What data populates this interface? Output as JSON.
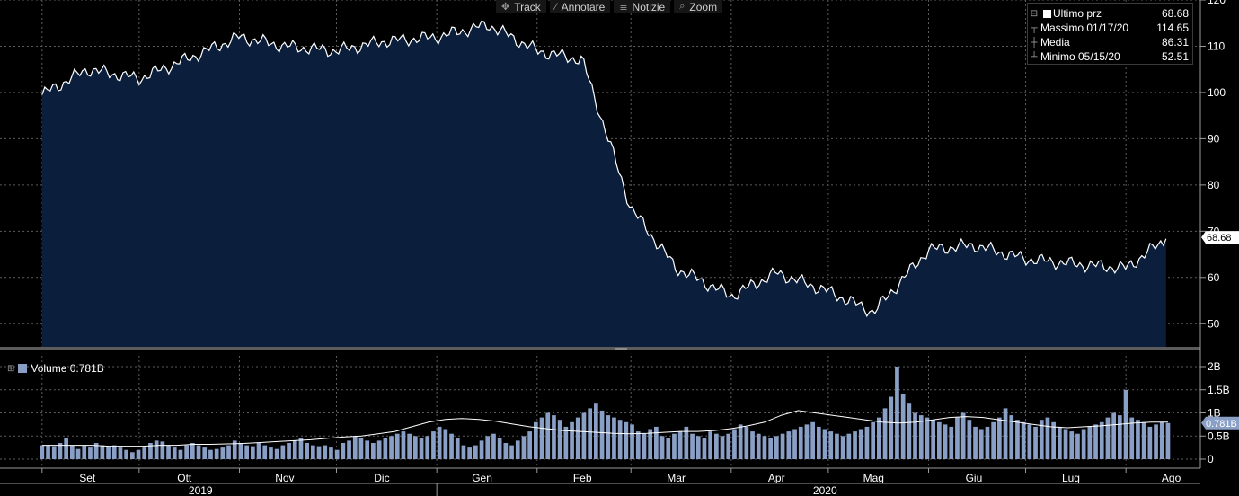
{
  "toolbar": {
    "track": "Track",
    "annotate": "Annotare",
    "news": "Notizie",
    "zoom": "Zoom"
  },
  "legend": {
    "last_label": "Ultimo prz",
    "last_value": "68.68",
    "high_label": "Massimo 01/17/20",
    "high_value": "114.65",
    "avg_label": "Media",
    "avg_value": "86.31",
    "low_label": "Minimo 05/15/20",
    "low_value": "52.51"
  },
  "volume_legend": {
    "label": "Volume 0.781B"
  },
  "colors": {
    "price_fill": "#0b1f3d",
    "price_line": "#ffffff",
    "volume_bar": "#8a9fc6",
    "grid": "#5a5a5a"
  },
  "chart_data": [
    {
      "type": "area",
      "series": [
        {
          "name": "Ultimo prz"
        }
      ],
      "x": [
        "2019-09-01",
        "2019-09-15",
        "2019-10-01",
        "2019-10-15",
        "2019-11-01",
        "2019-11-15",
        "2019-12-01",
        "2019-12-15",
        "2020-01-01",
        "2020-01-17",
        "2020-02-01",
        "2020-02-15",
        "2020-03-01",
        "2020-03-15",
        "2020-04-01",
        "2020-04-15",
        "2020-05-01",
        "2020-05-15",
        "2020-06-01",
        "2020-06-15",
        "2020-07-01",
        "2020-07-15",
        "2020-08-01",
        "2020-08-14"
      ],
      "values": [
        99.5,
        105,
        103,
        107,
        112,
        110,
        109,
        111,
        112,
        114.65,
        109,
        107,
        75,
        62,
        56,
        61,
        57,
        52.51,
        66,
        67,
        64,
        63,
        62,
        68.68
      ],
      "ylim": [
        45,
        120
      ],
      "y_ticks": [
        "120",
        "110",
        "100",
        "90",
        "80",
        "70",
        "60",
        "50"
      ],
      "last_value_label": "68.68",
      "x_ticks": [
        "Set",
        "Ott",
        "Nov",
        "Dic",
        "Gen",
        "Feb",
        "Mar",
        "Apr",
        "Mag",
        "Giu",
        "Lug",
        "Ago"
      ],
      "years": [
        "2019",
        "2020"
      ],
      "grid": true
    },
    {
      "type": "bar",
      "series": [
        {
          "name": "Volume"
        }
      ],
      "units": "billions",
      "x_range": [
        "2019-09-01",
        "2020-08-14"
      ],
      "values": [
        0.3,
        0.3,
        0.28,
        0.35,
        0.45,
        0.3,
        0.22,
        0.3,
        0.25,
        0.35,
        0.3,
        0.28,
        0.3,
        0.25,
        0.2,
        0.15,
        0.2,
        0.25,
        0.35,
        0.4,
        0.38,
        0.3,
        0.25,
        0.2,
        0.3,
        0.35,
        0.3,
        0.25,
        0.2,
        0.22,
        0.25,
        0.3,
        0.4,
        0.35,
        0.3,
        0.28,
        0.35,
        0.3,
        0.25,
        0.22,
        0.3,
        0.35,
        0.4,
        0.45,
        0.35,
        0.3,
        0.28,
        0.3,
        0.25,
        0.2,
        0.35,
        0.4,
        0.5,
        0.45,
        0.4,
        0.35,
        0.4,
        0.45,
        0.5,
        0.55,
        0.6,
        0.55,
        0.5,
        0.45,
        0.5,
        0.6,
        0.7,
        0.65,
        0.55,
        0.45,
        0.3,
        0.25,
        0.3,
        0.4,
        0.5,
        0.55,
        0.45,
        0.35,
        0.3,
        0.4,
        0.5,
        0.6,
        0.8,
        0.9,
        1.0,
        0.95,
        0.85,
        0.7,
        0.8,
        0.9,
        1.0,
        1.1,
        1.2,
        1.05,
        0.95,
        0.9,
        0.85,
        0.8,
        0.75,
        0.6,
        0.55,
        0.65,
        0.7,
        0.5,
        0.45,
        0.55,
        0.6,
        0.7,
        0.55,
        0.5,
        0.45,
        0.6,
        0.55,
        0.5,
        0.55,
        0.65,
        0.75,
        0.7,
        0.6,
        0.55,
        0.5,
        0.45,
        0.5,
        0.55,
        0.6,
        0.65,
        0.7,
        0.75,
        0.8,
        0.7,
        0.65,
        0.6,
        0.55,
        0.5,
        0.55,
        0.6,
        0.65,
        0.7,
        0.8,
        0.9,
        1.1,
        1.35,
        2.0,
        1.4,
        1.2,
        1.0,
        0.95,
        0.9,
        0.85,
        0.8,
        0.75,
        0.7,
        0.9,
        1.0,
        0.85,
        0.7,
        0.65,
        0.7,
        0.8,
        0.9,
        1.1,
        0.95,
        0.85,
        0.8,
        0.75,
        0.7,
        0.85,
        0.9,
        0.8,
        0.7,
        0.65,
        0.6,
        0.55,
        0.65,
        0.7,
        0.75,
        0.8,
        0.9,
        1.0,
        0.95,
        1.5,
        0.9,
        0.85,
        0.8,
        0.7,
        0.75,
        0.8,
        0.78
      ],
      "moving_average": [
        0.3,
        0.3,
        0.3,
        0.3,
        0.28,
        0.28,
        0.28,
        0.3,
        0.3,
        0.32,
        0.32,
        0.33,
        0.34,
        0.36,
        0.38,
        0.4,
        0.42,
        0.45,
        0.48,
        0.5,
        0.55,
        0.6,
        0.7,
        0.8,
        0.86,
        0.88,
        0.86,
        0.82,
        0.76,
        0.7,
        0.66,
        0.62,
        0.6,
        0.58,
        0.56,
        0.55,
        0.56,
        0.58,
        0.6,
        0.6,
        0.62,
        0.66,
        0.72,
        0.8,
        0.95,
        1.05,
        1.0,
        0.95,
        0.9,
        0.85,
        0.8,
        0.78,
        0.8,
        0.85,
        0.9,
        0.92,
        0.9,
        0.85,
        0.8,
        0.75,
        0.7,
        0.68,
        0.7,
        0.72,
        0.75,
        0.78,
        0.8,
        0.8
      ],
      "last_value_label": "0.781B",
      "y_ticks": [
        "2B",
        "1.5B",
        "1B",
        "0.5B",
        "0"
      ],
      "ylim": [
        0,
        2.0
      ]
    }
  ]
}
